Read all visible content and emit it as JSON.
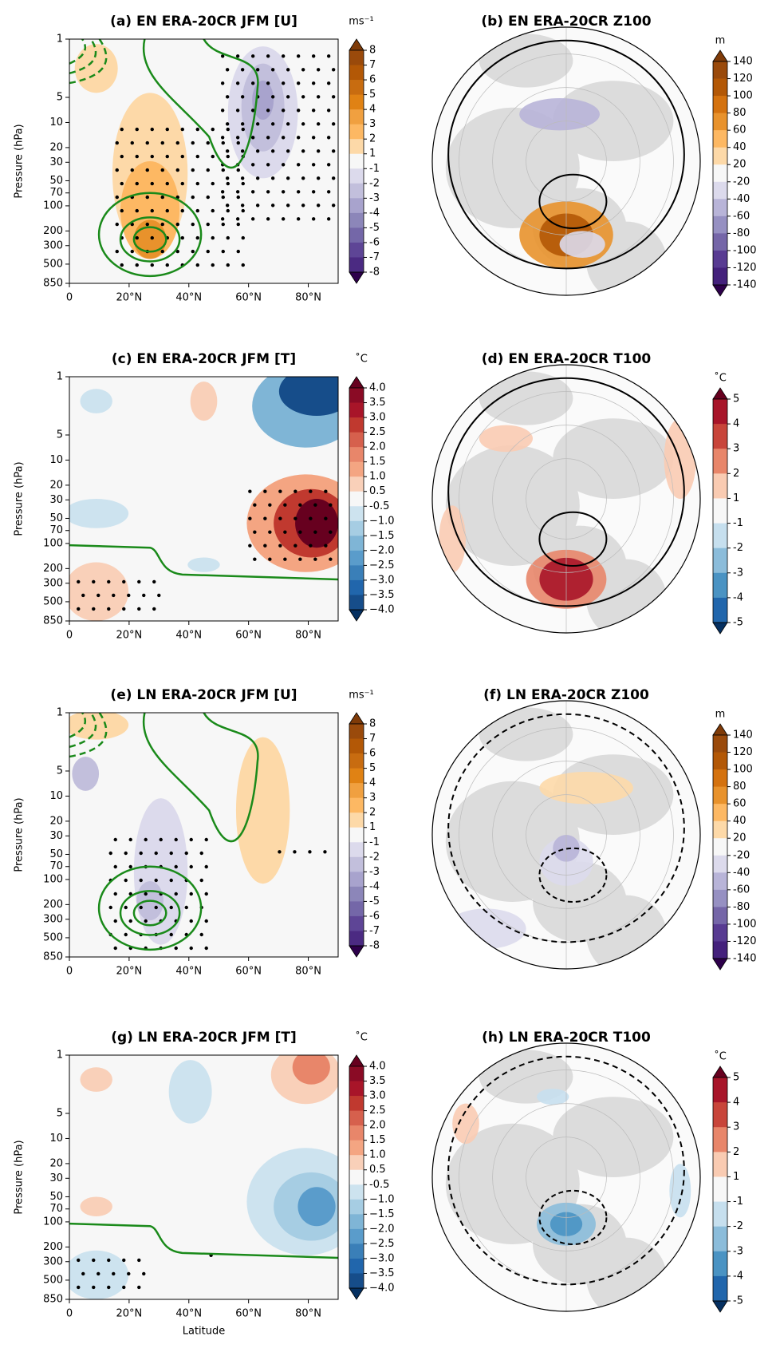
{
  "chart_data": [
    {
      "type": "contour",
      "title": "(a) EN ERA-20CR JFM [U]",
      "ylabel": "Pressure (hPa)",
      "xlim": [
        0,
        90
      ],
      "xticks": [
        0,
        {
          "value": 20,
          "label": "20°N"
        },
        {
          "value": 40,
          "label": "40°N"
        },
        {
          "value": 60,
          "label": "60°N"
        },
        {
          "value": 80,
          "label": "80°N"
        }
      ],
      "ylim": [
        850,
        1
      ],
      "yscale": "log",
      "yticks": [
        1,
        5,
        10,
        20,
        30,
        50,
        70,
        100,
        200,
        300,
        500,
        850
      ],
      "colorbar": {
        "label": "ms⁻¹",
        "ticks": [
          8,
          7,
          6,
          5,
          4,
          3,
          2,
          1,
          -1,
          -2,
          -3,
          -4,
          -5,
          -6,
          -7,
          -8
        ],
        "colors": [
          "#7f3b08",
          "#9a4a0b",
          "#b35806",
          "#c86c10",
          "#e08214",
          "#f0a040",
          "#fdb863",
          "#fdd9a8",
          "#f7f7f7",
          "#dcdaec",
          "#c2bfdc",
          "#a8a3cd",
          "#8c86b9",
          "#7467a8",
          "#5e4596",
          "#4b2a82",
          "#2d004b"
        ]
      }
    },
    {
      "type": "polar-map",
      "title": "(b) EN ERA-20CR Z100",
      "colorbar": {
        "label": "m",
        "ticks": [
          140,
          120,
          100,
          80,
          60,
          40,
          20,
          -20,
          -40,
          -60,
          -80,
          -100,
          -120,
          -140
        ],
        "colors": [
          "#7f3b08",
          "#9a4a0b",
          "#b35806",
          "#d4720f",
          "#e8922c",
          "#fdb863",
          "#fdd9a8",
          "#f7f7f7",
          "#dcdaec",
          "#b8b4d8",
          "#9690c2",
          "#7566a8",
          "#583b92",
          "#44217c",
          "#2d004b"
        ]
      }
    },
    {
      "type": "contour",
      "title": "(c) EN ERA-20CR JFM [T]",
      "ylabel": "Pressure (hPa)",
      "xlim": [
        0,
        90
      ],
      "xticks": [
        0,
        {
          "value": 20,
          "label": "20°N"
        },
        {
          "value": 40,
          "label": "40°N"
        },
        {
          "value": 60,
          "label": "60°N"
        },
        {
          "value": 80,
          "label": "80°N"
        }
      ],
      "ylim": [
        850,
        1
      ],
      "yscale": "log",
      "yticks": [
        1,
        5,
        10,
        20,
        30,
        50,
        70,
        100,
        200,
        300,
        500,
        850
      ],
      "colorbar": {
        "label": "˚C",
        "ticks": [
          {
            "value": 4,
            "label": "4.0"
          },
          3.5,
          {
            "value": 3,
            "label": "3.0"
          },
          2.5,
          {
            "value": 2,
            "label": "2.0"
          },
          1.5,
          {
            "value": 1,
            "label": "1.0"
          },
          0.5,
          -0.5,
          {
            "value": -1,
            "label": "−1.0"
          },
          {
            "value": -1.5,
            "label": "−1.5"
          },
          {
            "value": -2,
            "label": "−2.0"
          },
          {
            "value": -2.5,
            "label": "−2.5"
          },
          {
            "value": -3,
            "label": "−3.0"
          },
          {
            "value": -3.5,
            "label": "−3.5"
          },
          {
            "value": -4,
            "label": "−4.0"
          }
        ],
        "colors": [
          "#67001f",
          "#8a0b25",
          "#a81529",
          "#c0392f",
          "#d6604d",
          "#e8866a",
          "#f4a582",
          "#f9d0b9",
          "#f7f7f7",
          "#cde3ef",
          "#a6cde3",
          "#7fb5d6",
          "#5a9ccb",
          "#3a7fb8",
          "#2166ac",
          "#164d8a",
          "#053061"
        ]
      }
    },
    {
      "type": "polar-map",
      "title": "(d) EN ERA-20CR T100",
      "colorbar": {
        "label": "˚C",
        "ticks": [
          5,
          4,
          3,
          2,
          1,
          -1,
          -2,
          -3,
          -4,
          -5
        ],
        "colors": [
          "#67001f",
          "#a81529",
          "#c8453a",
          "#e8866a",
          "#f9cbb2",
          "#f7f7f7",
          "#c6dfee",
          "#8bbcda",
          "#4a93c3",
          "#2166ac",
          "#053061"
        ]
      }
    },
    {
      "type": "contour",
      "title": "(e) LN ERA-20CR JFM [U]",
      "ylabel": "Pressure (hPa)",
      "xlim": [
        0,
        90
      ],
      "xticks": [
        0,
        {
          "value": 20,
          "label": "20°N"
        },
        {
          "value": 40,
          "label": "40°N"
        },
        {
          "value": 60,
          "label": "60°N"
        },
        {
          "value": 80,
          "label": "80°N"
        }
      ],
      "ylim": [
        850,
        1
      ],
      "yscale": "log",
      "yticks": [
        1,
        5,
        10,
        20,
        30,
        50,
        70,
        100,
        200,
        300,
        500,
        850
      ],
      "colorbar": {
        "label": "ms⁻¹",
        "ticks": [
          8,
          7,
          6,
          5,
          4,
          3,
          2,
          1,
          -1,
          -2,
          -3,
          -4,
          -5,
          -6,
          -7,
          -8
        ],
        "colors": [
          "#7f3b08",
          "#9a4a0b",
          "#b35806",
          "#c86c10",
          "#e08214",
          "#f0a040",
          "#fdb863",
          "#fdd9a8",
          "#f7f7f7",
          "#dcdaec",
          "#c2bfdc",
          "#a8a3cd",
          "#8c86b9",
          "#7467a8",
          "#5e4596",
          "#4b2a82",
          "#2d004b"
        ]
      }
    },
    {
      "type": "polar-map",
      "title": "(f) LN ERA-20CR Z100",
      "colorbar": {
        "label": "m",
        "ticks": [
          140,
          120,
          100,
          80,
          60,
          40,
          20,
          -20,
          -40,
          -60,
          -80,
          -100,
          -120,
          -140
        ],
        "colors": [
          "#7f3b08",
          "#9a4a0b",
          "#b35806",
          "#d4720f",
          "#e8922c",
          "#fdb863",
          "#fdd9a8",
          "#f7f7f7",
          "#dcdaec",
          "#b8b4d8",
          "#9690c2",
          "#7566a8",
          "#583b92",
          "#44217c",
          "#2d004b"
        ]
      }
    },
    {
      "type": "contour",
      "title": "(g) LN ERA-20CR JFM [T]",
      "ylabel": "Pressure (hPa)",
      "xlabel": "Latitude",
      "xlim": [
        0,
        90
      ],
      "xticks": [
        0,
        {
          "value": 20,
          "label": "20°N"
        },
        {
          "value": 40,
          "label": "40°N"
        },
        {
          "value": 60,
          "label": "60°N"
        },
        {
          "value": 80,
          "label": "80°N"
        }
      ],
      "ylim": [
        850,
        1
      ],
      "yscale": "log",
      "yticks": [
        1,
        5,
        10,
        20,
        30,
        50,
        70,
        100,
        200,
        300,
        500,
        850
      ],
      "colorbar": {
        "label": "˚C",
        "ticks": [
          {
            "value": 4,
            "label": "4.0"
          },
          3.5,
          {
            "value": 3,
            "label": "3.0"
          },
          2.5,
          {
            "value": 2,
            "label": "2.0"
          },
          1.5,
          {
            "value": 1,
            "label": "1.0"
          },
          0.5,
          -0.5,
          {
            "value": -1,
            "label": "−1.0"
          },
          {
            "value": -1.5,
            "label": "−1.5"
          },
          {
            "value": -2,
            "label": "−2.0"
          },
          {
            "value": -2.5,
            "label": "−2.5"
          },
          {
            "value": -3,
            "label": "−3.0"
          },
          {
            "value": -3.5,
            "label": "−3.5"
          },
          {
            "value": -4,
            "label": "−4.0"
          }
        ],
        "colors": [
          "#67001f",
          "#8a0b25",
          "#a81529",
          "#c0392f",
          "#d6604d",
          "#e8866a",
          "#f4a582",
          "#f9d0b9",
          "#f7f7f7",
          "#cde3ef",
          "#a6cde3",
          "#7fb5d6",
          "#5a9ccb",
          "#3a7fb8",
          "#2166ac",
          "#164d8a",
          "#053061"
        ]
      }
    },
    {
      "type": "polar-map",
      "title": "(h) LN ERA-20CR T100",
      "colorbar": {
        "label": "˚C",
        "ticks": [
          5,
          4,
          3,
          2,
          1,
          -1,
          -2,
          -3,
          -4,
          -5
        ],
        "colors": [
          "#67001f",
          "#a81529",
          "#c8453a",
          "#e8866a",
          "#f9cbb2",
          "#f7f7f7",
          "#c6dfee",
          "#8bbcda",
          "#4a93c3",
          "#2166ac",
          "#053061"
        ]
      }
    }
  ]
}
